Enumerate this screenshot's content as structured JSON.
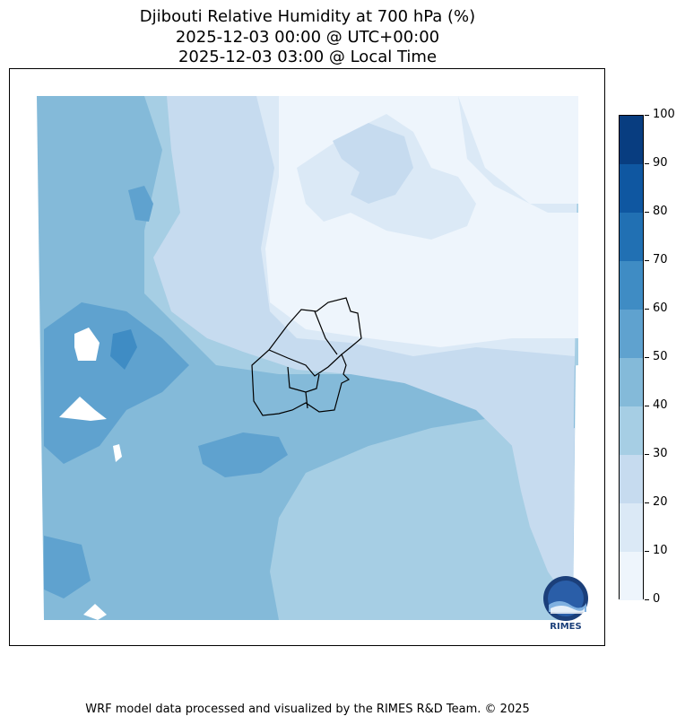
{
  "title": {
    "line1": "Djibouti Relative Humidity at 700 hPa (%)",
    "line2": "2025-12-03 00:00 @ UTC+00:00",
    "line3": "2025-12-03 03:00 @ Local Time"
  },
  "colorbar": {
    "ticks": [
      "0",
      "10",
      "20",
      "30",
      "40",
      "50",
      "60",
      "70",
      "80",
      "90",
      "100"
    ],
    "colors": [
      "#eef5fc",
      "#dbe9f6",
      "#c6dbef",
      "#a6cee4",
      "#84bad9",
      "#5fa2cf",
      "#3f8cc4",
      "#2170b3",
      "#0f57a1",
      "#083d80"
    ]
  },
  "map": {
    "field_colors": {
      "very_low": "#eef5fc",
      "low": "#dbe9f6",
      "low_mid": "#c6dbef",
      "mid": "#a6cee4",
      "mid_high": "#84bad9",
      "high": "#5fa2cf",
      "higher": "#3f8cc4"
    },
    "border_color": "#000000"
  },
  "logo": {
    "text": "RIMES",
    "icon": "rimes-logo-icon"
  },
  "footer": "WRF model data processed and visualized by the RIMES R&D Team. © 2025"
}
